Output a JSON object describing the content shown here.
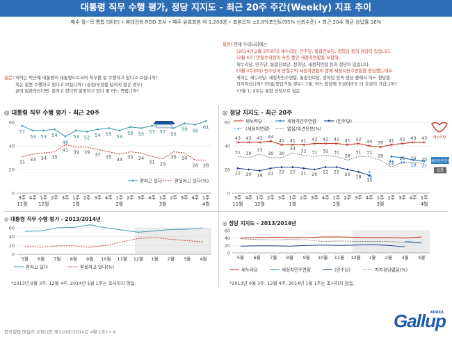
{
  "header": {
    "title": "대통령 직무 수행 평가, 정당 지지도 - 최근 20주 주간(Weekly) 지표 추이",
    "subtitle": "매주 월~목 통합 데이터 • 휴대전화 RDD 조사 • 매주 유효표본 약 1,200명 • 표본오차 ±2.8%포인트(95% 신뢰수준) • 최근 20주 평균 응답률 16%"
  },
  "question_left": {
    "label": "질문)",
    "lines": [
      "귀하는 박근혜 대통령이 대통령으로서의 직무를 잘 수행하고 있다고 보십니까?",
      "혹은 잘못 수행하고 있다고 보십니까? (공정/부정을 답하지 않은 경우)",
      "굳이 말씀하신다면, 잘하고 있다와 잘못하고 있다 중 어느 쪽입니까?"
    ]
  },
  "question_right": {
    "label": "질문)",
    "line1": "현재 우리나라에는",
    "line2": "(2014년 2월 3주까지) 새누리당, 민주당, 통합진보당, 정의당 등의 정당이 있습니다.",
    "line3": "(2월 4주) 안철수의원이 추진 중인 새정치연합을 포함해,",
    "line4": "새누리당, 민주당, 통합진보당, 정의당, 새정치연합 등의 정당이 있습니다.",
    "line5": "(3월 3주부터) 민주당과 안철수의 새정치연합이 함께 새정치민주연합을 창당했는데요.",
    "line6": "귀하는 새누리당, 새정치민주연합, 통합진보당, 정의당 등의 정당 중에서 어느 정당을",
    "line7": "지지하십니까? (모름/응답거절 경우) 그렇, 어느 정당에 조금이라도 더 호감이 가십니까?",
    "line8": "•3월 1, 2주는 통합 신당으로 질문"
  },
  "sections": {
    "approval_20w": "대통령 직무 수행 평가 - 최근 20주",
    "party_20w": "정당 지지도 - 최근 20주",
    "approval_yearly": "대통령 직무 수행 평가 - 2013/2014년",
    "party_yearly": "정당 지지도 - 2013/2014년"
  },
  "notes": {
    "left": "*2013년 9월 3주, 12월 4주, 2014년 1월 1주는 조사하지 않음.",
    "right": "*2013년 9월 3주, 12월 4주, 2014년 1월 1주는 조사하지 않음."
  },
  "footer": "한국갤럽 데일리 오피니언 제110호(2014년 4월 1주) • 4",
  "logo": {
    "text": "Gallup",
    "sub": "KOREA"
  },
  "colors": {
    "header_bg": "#2d6db5",
    "approve": "#4aa3b8",
    "disapprove": "#c0392b",
    "saenuri": "#c0392b",
    "npad": "#2e7ec0",
    "minju": "#1f3f86",
    "sae_jeongchi": "#6aa7d8",
    "none": "#777777"
  },
  "chart_data": [
    {
      "type": "line",
      "name_key": "approval_20w",
      "ylim": [
        0,
        60
      ],
      "yticks": [
        0,
        20,
        40,
        60
      ],
      "x_labels": [
        [
          "3주",
          "11월"
        ],
        [
          "4주",
          ""
        ],
        [
          "1주",
          "12월"
        ],
        [
          "2주",
          ""
        ],
        [
          "3주",
          ""
        ],
        [
          "1주",
          "1월"
        ],
        [
          "2주",
          ""
        ],
        [
          "3주",
          ""
        ],
        [
          "4주",
          ""
        ],
        [
          "1주",
          "2월"
        ],
        [
          "2주",
          ""
        ],
        [
          "3주",
          ""
        ],
        [
          "4주",
          ""
        ],
        [
          "1주",
          "3월"
        ],
        [
          "2주",
          ""
        ],
        [
          "3주",
          ""
        ],
        [
          "4주",
          ""
        ],
        [
          "1주",
          "4월"
        ]
      ],
      "series": [
        {
          "name": "잘하고 있다",
          "values": [
            57,
            53,
            53,
            54,
            48,
            53,
            52,
            54,
            55,
            53,
            56,
            55,
            57,
            57,
            55,
            59,
            58,
            61
          ]
        },
        {
          "name": "잘못하고 있다(%)",
          "values": [
            31,
            33,
            34,
            35,
            41,
            39,
            39,
            37,
            35,
            33,
            35,
            34,
            31,
            29,
            35,
            34,
            28,
            28
          ]
        }
      ]
    },
    {
      "type": "line",
      "name_key": "party_20w",
      "ylim": [
        0,
        60
      ],
      "yticks": [
        0,
        20,
        40,
        60
      ],
      "x_labels": [
        [
          "3주",
          "11월"
        ],
        [
          "4주",
          ""
        ],
        [
          "1주",
          "12월"
        ],
        [
          "2주",
          ""
        ],
        [
          "3주",
          ""
        ],
        [
          "1주",
          "1월"
        ],
        [
          "2주",
          ""
        ],
        [
          "3주",
          ""
        ],
        [
          "4주",
          ""
        ],
        [
          "1주",
          "2월"
        ],
        [
          "2주",
          ""
        ],
        [
          "3주",
          ""
        ],
        [
          "4주",
          ""
        ],
        [
          "1주",
          "3월"
        ],
        [
          "2주",
          ""
        ],
        [
          "3주",
          ""
        ],
        [
          "4주",
          ""
        ],
        [
          "1주",
          "4월"
        ]
      ],
      "legend": [
        "새누리당",
        "새정치민주연합",
        "(민주당)",
        "(새정치연합)",
        "없음/의견유보(%)"
      ],
      "series": [
        {
          "name": "새누리당",
          "values": [
            43,
            43,
            43,
            44,
            41,
            41,
            41,
            42,
            42,
            42,
            41,
            42,
            40,
            39,
            41,
            42,
            43,
            43
          ]
        },
        {
          "name": "새정치민주연합",
          "values": [
            null,
            null,
            null,
            null,
            null,
            null,
            null,
            null,
            null,
            null,
            null,
            null,
            null,
            null,
            31,
            30,
            28,
            27
          ]
        },
        {
          "name": "(민주당)",
          "values": [
            21,
            20,
            19,
            21,
            22,
            22,
            21,
            20,
            22,
            22,
            20,
            18,
            15,
            null,
            null,
            null,
            null,
            null
          ]
        },
        {
          "name": "(새정치연합)",
          "values": [
            null,
            null,
            null,
            null,
            null,
            null,
            null,
            null,
            null,
            null,
            null,
            null,
            18,
            null,
            null,
            null,
            null,
            null
          ]
        },
        {
          "name": "없음/의견유보(%)",
          "values": [
            31,
            30,
            33,
            30,
            30,
            34,
            32,
            31,
            32,
            31,
            28,
            31,
            31,
            28,
            22,
            26,
            26,
            25
          ]
        }
      ],
      "end_labels": {
        "saenuri": "새누리당",
        "npad": "새정치민주연합",
        "none": "없음"
      }
    },
    {
      "type": "line",
      "name_key": "approval_yearly",
      "ylim": [
        0,
        60
      ],
      "yticks": [
        0,
        20,
        40,
        60
      ],
      "x_labels": [
        "5월",
        "6월",
        "7월",
        "8월",
        "9월",
        "10월",
        "11월",
        "12월",
        "1월",
        "2월",
        "3월",
        "4월"
      ],
      "series": [
        {
          "name": "잘하고 있다",
          "values": [
            52,
            53,
            60,
            61,
            67,
            60,
            55,
            50,
            53,
            56,
            57,
            60
          ]
        },
        {
          "name": "잘못하고 있다(%)",
          "values": [
            18,
            16,
            19,
            19,
            16,
            20,
            28,
            36,
            38,
            34,
            31,
            28
          ]
        }
      ]
    },
    {
      "type": "line",
      "name_key": "party_yearly",
      "ylim": [
        0,
        60
      ],
      "yticks": [
        0,
        20,
        40,
        60
      ],
      "x_labels": [
        "5월",
        "6월",
        "7월",
        "8월",
        "9월",
        "10월",
        "11월",
        "12월",
        "1월",
        "2월",
        "3월",
        "4월"
      ],
      "legend": [
        "새누리당",
        "새정치민주연합",
        "(민주당)",
        "지지정당없음(%)"
      ],
      "series": [
        {
          "name": "새누리당",
          "values": [
            40,
            41,
            42,
            41,
            41,
            43,
            43,
            42,
            41,
            41,
            40,
            43
          ]
        },
        {
          "name": "새정치민주연합",
          "values": [
            null,
            null,
            null,
            null,
            null,
            null,
            null,
            null,
            null,
            null,
            31,
            27
          ]
        },
        {
          "name": "(민주당)",
          "values": [
            18,
            19,
            19,
            18,
            20,
            21,
            20,
            21,
            22,
            20,
            16,
            null
          ]
        },
        {
          "name": "지지정당없음(%)",
          "values": [
            38,
            36,
            35,
            36,
            35,
            31,
            32,
            31,
            31,
            31,
            28,
            26
          ]
        }
      ]
    }
  ]
}
